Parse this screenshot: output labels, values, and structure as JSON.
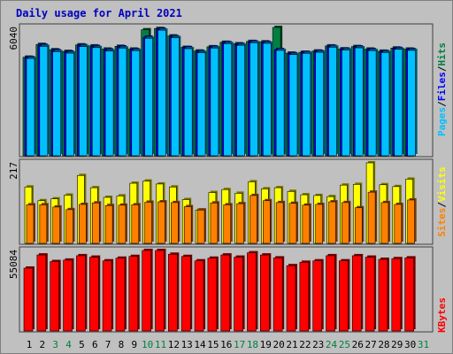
{
  "chart_data": {
    "type": "bar",
    "title": "Daily usage for April 2021",
    "categories": [
      "1",
      "2",
      "3",
      "4",
      "5",
      "6",
      "7",
      "8",
      "9",
      "10",
      "11",
      "12",
      "13",
      "14",
      "15",
      "16",
      "17",
      "18",
      "19",
      "20",
      "21",
      "22",
      "23",
      "24",
      "25",
      "26",
      "27",
      "28",
      "29",
      "30",
      "31"
    ],
    "weekend_days": [
      "3",
      "4",
      "10",
      "11",
      "17",
      "18",
      "24",
      "25",
      "31"
    ],
    "panels": [
      {
        "id": "hits-files-pages",
        "max_label": "6040",
        "ylim": [
          0,
          6040
        ],
        "side_labels": [
          {
            "text": "Pages",
            "color": "#00c0ff"
          },
          {
            "text": "/",
            "color": "#000000"
          },
          {
            "text": "Files",
            "color": "#0000ff"
          },
          {
            "text": "/",
            "color": "#000000"
          },
          {
            "text": "Hits",
            "color": "#008040"
          }
        ],
        "series": [
          {
            "name": "Hits",
            "color": "#008040",
            "values": [
              4640,
              5240,
              4990,
              4910,
              5220,
              5170,
              5020,
              5150,
              5020,
              5930,
              5990,
              5640,
              5100,
              4930,
              5130,
              5340,
              5270,
              5380,
              5360,
              6040,
              4830,
              4870,
              4930,
              5170,
              5030,
              5140,
              5020,
              4920,
              5070,
              5020,
              null
            ]
          },
          {
            "name": "Files",
            "color": "#0000ff",
            "values": [
              4620,
              5200,
              4950,
              4880,
              5190,
              5140,
              4980,
              5120,
              4990,
              5580,
              5960,
              5600,
              5090,
              4890,
              5110,
              5320,
              5240,
              5360,
              5330,
              5000,
              4800,
              4860,
              4910,
              5150,
              5020,
              5120,
              4990,
              4900,
              5050,
              5000,
              null
            ]
          },
          {
            "name": "Pages",
            "color": "#00c0ff",
            "values": [
              4580,
              5150,
              4900,
              4830,
              5140,
              5090,
              4930,
              5070,
              4950,
              5530,
              5910,
              5560,
              5040,
              4850,
              5070,
              5280,
              5200,
              5320,
              5290,
              4960,
              4760,
              4820,
              4870,
              5110,
              4980,
              5080,
              4950,
              4860,
              5010,
              4960,
              null
            ]
          }
        ]
      },
      {
        "id": "visits-sites",
        "max_label": "217",
        "ylim": [
          0,
          217
        ],
        "side_labels": [
          {
            "text": "Sites",
            "color": "#ff8000"
          },
          {
            "text": "/",
            "color": "#000000"
          },
          {
            "text": "Visits",
            "color": "#ffff00"
          }
        ],
        "series": [
          {
            "name": "Visits",
            "color": "#ffff00",
            "values": [
              152,
              115,
              120,
              130,
              183,
              150,
              124,
              128,
              162,
              168,
              160,
              152,
              118,
              90,
              137,
              145,
              135,
              166,
              147,
              150,
              140,
              131,
              129,
              126,
              157,
              159,
              217,
              158,
              153,
              173,
              null
            ]
          },
          {
            "name": "Sites",
            "color": "#ff8000",
            "values": [
              104,
              104,
              98,
              91,
              105,
              109,
              102,
              103,
              104,
              111,
              112,
              110,
              99,
              90,
              109,
              104,
              107,
              129,
              115,
              110,
              108,
              103,
              105,
              112,
              110,
              96,
              138,
              110,
              105,
              117,
              null
            ]
          }
        ]
      },
      {
        "id": "kbytes",
        "max_label": "55084",
        "ylim": [
          0,
          55084
        ],
        "side_labels": [
          {
            "text": "KBytes",
            "color": "#ff0000"
          }
        ],
        "series": [
          {
            "name": "KBytes",
            "color": "#ff0000",
            "values": [
              43000,
              52000,
              47500,
              48500,
              51500,
              50500,
              48000,
              49800,
              51000,
              55084,
              55084,
              52500,
              51000,
              48000,
              49800,
              52000,
              50500,
              53500,
              52000,
              50000,
              44700,
              47000,
              48000,
              51500,
              48000,
              51500,
              50500,
              49000,
              49500,
              50000,
              null
            ]
          }
        ]
      }
    ]
  }
}
